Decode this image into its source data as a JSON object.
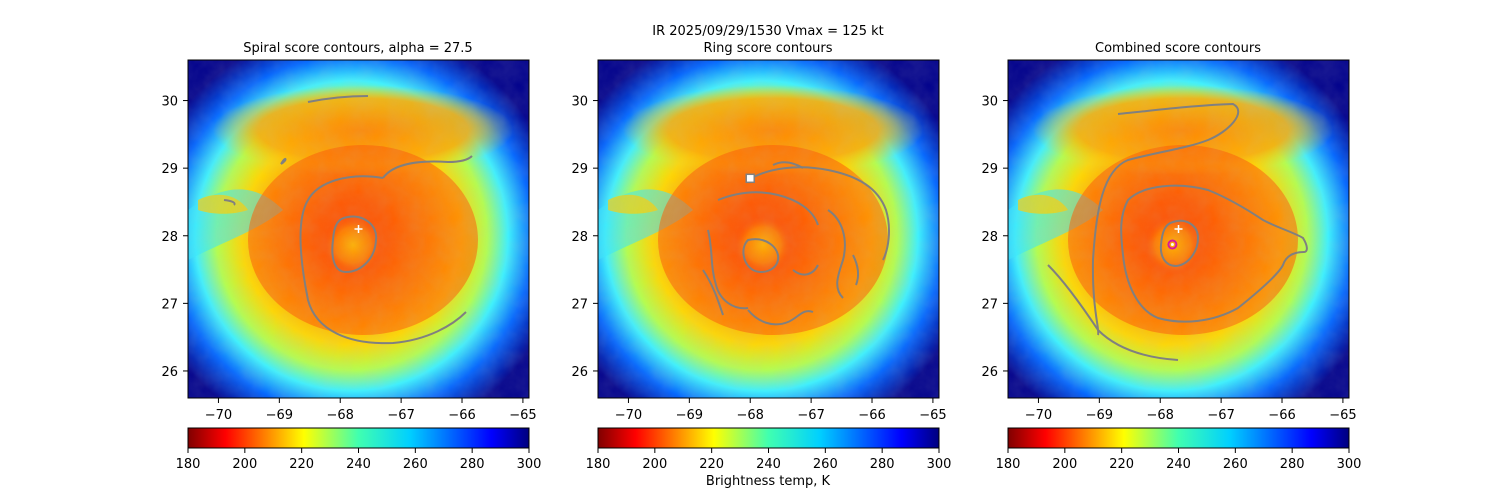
{
  "figure": {
    "suptitle_line1": "IR  2025/09/29/1530    Vmax = 125 kt",
    "colorbar_label": "Brightness temp, K"
  },
  "colors": {
    "contour": "#808080",
    "center_marker": "#ffffff",
    "ring_marker": "#d81b9a"
  },
  "chart_data": [
    {
      "type": "heatmap",
      "title": "Spiral score contours, alpha = 27.5",
      "xlabel": "",
      "ylabel": "",
      "xlim": [
        -70.5,
        -64.9
      ],
      "ylim": [
        25.6,
        30.6
      ],
      "xticks": [
        "−70",
        "−69",
        "−68",
        "−67",
        "−66",
        "−65"
      ],
      "yticks": [
        "26",
        "27",
        "28",
        "29",
        "30"
      ],
      "center_marker": {
        "symbol": "+",
        "lon": -67.7,
        "lat": 28.1
      },
      "colorbar": {
        "range": [
          180,
          300
        ],
        "ticks": [
          "180",
          "200",
          "220",
          "240",
          "260",
          "280",
          "300"
        ],
        "colormap": "jet_r"
      }
    },
    {
      "type": "heatmap",
      "title": "Ring score contours",
      "xlabel": "",
      "ylabel": "",
      "xlim": [
        -70.5,
        -64.9
      ],
      "ylim": [
        25.6,
        30.6
      ],
      "xticks": [
        "−70",
        "−69",
        "−68",
        "−67",
        "−66",
        "−65"
      ],
      "yticks": [
        "26",
        "27",
        "28",
        "29",
        "30"
      ],
      "ring_marker": {
        "symbol": "square",
        "lon": -68.0,
        "lat": 28.85
      },
      "colorbar": {
        "range": [
          180,
          300
        ],
        "ticks": [
          "180",
          "200",
          "220",
          "240",
          "260",
          "280",
          "300"
        ],
        "colormap": "jet_r"
      }
    },
    {
      "type": "heatmap",
      "title": "Combined score contours",
      "xlabel": "",
      "ylabel": "",
      "xlim": [
        -70.5,
        -64.9
      ],
      "ylim": [
        25.6,
        30.6
      ],
      "xticks": [
        "−70",
        "−69",
        "−68",
        "−67",
        "−66",
        "−65"
      ],
      "yticks": [
        "26",
        "27",
        "28",
        "29",
        "30"
      ],
      "center_marker": {
        "symbol": "+",
        "lon": -67.7,
        "lat": 28.1
      },
      "combined_marker": {
        "symbol": "circle",
        "lon": -67.8,
        "lat": 27.87
      },
      "colorbar": {
        "range": [
          180,
          300
        ],
        "ticks": [
          "180",
          "200",
          "220",
          "240",
          "260",
          "280",
          "300"
        ],
        "colormap": "jet_r"
      }
    }
  ]
}
